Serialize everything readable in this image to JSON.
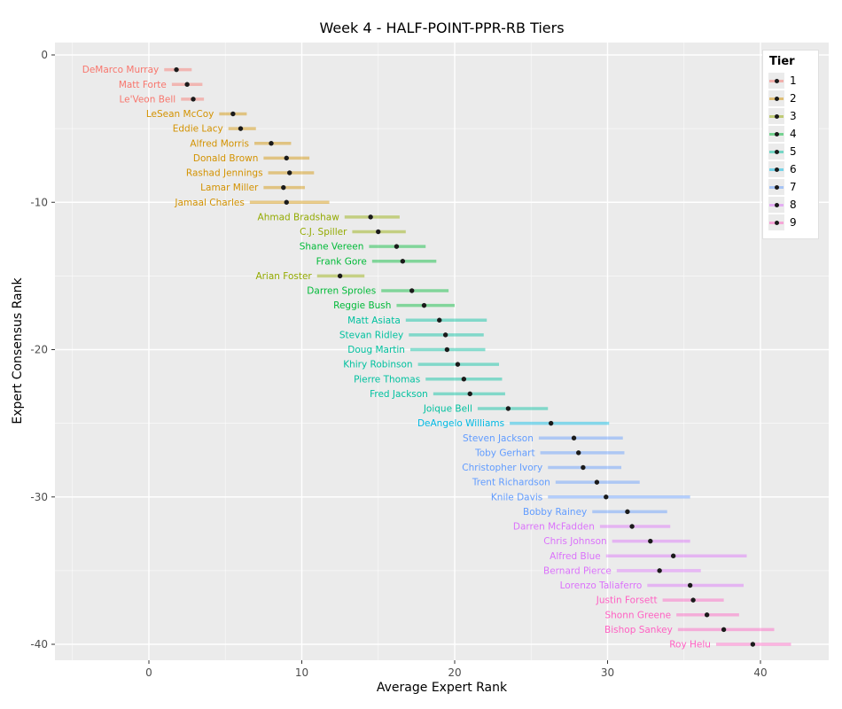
{
  "title": "Week 4 - HALF-POINT-PPR-RB Tiers",
  "legend": {
    "title": "Tier",
    "entries": [
      "1",
      "2",
      "3",
      "4",
      "5",
      "6",
      "7",
      "8",
      "9"
    ]
  },
  "colors": {
    "panel_bg": "#ebebeb",
    "grid_major": "#ffffff",
    "grid_minor": "#ffffff",
    "point": "#1b1b1b",
    "tick_label": "#4d4d4d",
    "tick_mark": "#333333",
    "tiers": [
      "#F8766D",
      "#D39200",
      "#93AA00",
      "#00BA38",
      "#00C19F",
      "#00B9E3",
      "#619CFF",
      "#DB72FB",
      "#FF61C3"
    ]
  },
  "chart_data": {
    "type": "scatter",
    "title": "Week 4 - HALF-POINT-PPR-RB Tiers",
    "xlabel": "Average Expert Rank",
    "ylabel": "Expert Consensus Rank",
    "xlim": [
      -6.1,
      44.5
    ],
    "ylim": [
      -41.9,
      0.85
    ],
    "xticks": [
      0,
      10,
      20,
      30,
      40
    ],
    "xticks_minor": [
      -5,
      5,
      15,
      25,
      35
    ],
    "yticks": [
      0,
      -10,
      -20,
      -30,
      -40
    ],
    "yticks_minor": [
      -5,
      -15,
      -25,
      -35
    ],
    "grid": true,
    "legend_position": "right-inside",
    "series_note": "y value = negative Expert Consensus Rank; bar = expert low/high range; dot = average expert rank",
    "players": [
      {
        "name": "DeMarco Murray",
        "ecr": 1,
        "tier": 1,
        "avg": 1.8,
        "lo": 1.0,
        "hi": 2.8
      },
      {
        "name": "Matt Forte",
        "ecr": 2,
        "tier": 1,
        "avg": 2.5,
        "lo": 1.5,
        "hi": 3.5
      },
      {
        "name": "Le'Veon Bell",
        "ecr": 3,
        "tier": 1,
        "avg": 2.9,
        "lo": 2.1,
        "hi": 3.6
      },
      {
        "name": "LeSean McCoy",
        "ecr": 4,
        "tier": 2,
        "avg": 5.5,
        "lo": 4.6,
        "hi": 6.4
      },
      {
        "name": "Eddie Lacy",
        "ecr": 5,
        "tier": 2,
        "avg": 6.0,
        "lo": 5.2,
        "hi": 7.0
      },
      {
        "name": "Alfred Morris",
        "ecr": 6,
        "tier": 2,
        "avg": 8.0,
        "lo": 6.9,
        "hi": 9.3
      },
      {
        "name": "Donald Brown",
        "ecr": 7,
        "tier": 2,
        "avg": 9.0,
        "lo": 7.5,
        "hi": 10.5
      },
      {
        "name": "Rashad Jennings",
        "ecr": 8,
        "tier": 2,
        "avg": 9.2,
        "lo": 7.8,
        "hi": 10.8
      },
      {
        "name": "Lamar Miller",
        "ecr": 9,
        "tier": 2,
        "avg": 8.8,
        "lo": 7.5,
        "hi": 10.2
      },
      {
        "name": "Jamaal Charles",
        "ecr": 10,
        "tier": 2,
        "avg": 9.0,
        "lo": 6.6,
        "hi": 11.8
      },
      {
        "name": "Ahmad Bradshaw",
        "ecr": 11,
        "tier": 3,
        "avg": 14.5,
        "lo": 12.8,
        "hi": 16.4
      },
      {
        "name": "C.J. Spiller",
        "ecr": 12,
        "tier": 3,
        "avg": 15.0,
        "lo": 13.3,
        "hi": 16.8
      },
      {
        "name": "Shane Vereen",
        "ecr": 13,
        "tier": 4,
        "avg": 16.2,
        "lo": 14.4,
        "hi": 18.1
      },
      {
        "name": "Frank Gore",
        "ecr": 14,
        "tier": 4,
        "avg": 16.6,
        "lo": 14.6,
        "hi": 18.8
      },
      {
        "name": "Arian Foster",
        "ecr": 15,
        "tier": 3,
        "avg": 12.5,
        "lo": 11.0,
        "hi": 14.1
      },
      {
        "name": "Darren Sproles",
        "ecr": 16,
        "tier": 4,
        "avg": 17.2,
        "lo": 15.2,
        "hi": 19.6
      },
      {
        "name": "Reggie Bush",
        "ecr": 17,
        "tier": 4,
        "avg": 18.0,
        "lo": 16.2,
        "hi": 20.0
      },
      {
        "name": "Matt Asiata",
        "ecr": 18,
        "tier": 5,
        "avg": 19.0,
        "lo": 16.8,
        "hi": 22.1
      },
      {
        "name": "Stevan Ridley",
        "ecr": 19,
        "tier": 5,
        "avg": 19.4,
        "lo": 17.0,
        "hi": 21.9
      },
      {
        "name": "Doug Martin",
        "ecr": 20,
        "tier": 5,
        "avg": 19.5,
        "lo": 17.1,
        "hi": 22.0
      },
      {
        "name": "Khiry Robinson",
        "ecr": 21,
        "tier": 5,
        "avg": 20.2,
        "lo": 17.6,
        "hi": 22.9
      },
      {
        "name": "Pierre Thomas",
        "ecr": 22,
        "tier": 5,
        "avg": 20.6,
        "lo": 18.1,
        "hi": 23.1
      },
      {
        "name": "Fred Jackson",
        "ecr": 23,
        "tier": 5,
        "avg": 21.0,
        "lo": 18.6,
        "hi": 23.3
      },
      {
        "name": "Joique Bell",
        "ecr": 24,
        "tier": 5,
        "avg": 23.5,
        "lo": 21.5,
        "hi": 26.1
      },
      {
        "name": "DeAngelo Williams",
        "ecr": 25,
        "tier": 6,
        "avg": 26.3,
        "lo": 23.6,
        "hi": 30.1
      },
      {
        "name": "Steven Jackson",
        "ecr": 26,
        "tier": 7,
        "avg": 27.8,
        "lo": 25.5,
        "hi": 31.0
      },
      {
        "name": "Toby Gerhart",
        "ecr": 27,
        "tier": 7,
        "avg": 28.1,
        "lo": 25.6,
        "hi": 31.1
      },
      {
        "name": "Christopher Ivory",
        "ecr": 28,
        "tier": 7,
        "avg": 28.4,
        "lo": 26.1,
        "hi": 30.9
      },
      {
        "name": "Trent Richardson",
        "ecr": 29,
        "tier": 7,
        "avg": 29.3,
        "lo": 26.6,
        "hi": 32.1
      },
      {
        "name": "Knile Davis",
        "ecr": 30,
        "tier": 7,
        "avg": 29.9,
        "lo": 26.1,
        "hi": 35.4
      },
      {
        "name": "Bobby Rainey",
        "ecr": 31,
        "tier": 7,
        "avg": 31.3,
        "lo": 29.0,
        "hi": 33.9
      },
      {
        "name": "Darren McFadden",
        "ecr": 32,
        "tier": 8,
        "avg": 31.6,
        "lo": 29.5,
        "hi": 34.1
      },
      {
        "name": "Chris Johnson",
        "ecr": 33,
        "tier": 8,
        "avg": 32.8,
        "lo": 30.3,
        "hi": 35.4
      },
      {
        "name": "Alfred Blue",
        "ecr": 34,
        "tier": 8,
        "avg": 34.3,
        "lo": 29.9,
        "hi": 39.1
      },
      {
        "name": "Bernard Pierce",
        "ecr": 35,
        "tier": 8,
        "avg": 33.4,
        "lo": 30.6,
        "hi": 36.1
      },
      {
        "name": "Lorenzo Taliaferro",
        "ecr": 36,
        "tier": 8,
        "avg": 35.4,
        "lo": 32.6,
        "hi": 38.9
      },
      {
        "name": "Justin Forsett",
        "ecr": 37,
        "tier": 9,
        "avg": 35.6,
        "lo": 33.6,
        "hi": 37.6
      },
      {
        "name": "Shonn Greene",
        "ecr": 38,
        "tier": 9,
        "avg": 36.5,
        "lo": 34.5,
        "hi": 38.6
      },
      {
        "name": "Bishop Sankey",
        "ecr": 39,
        "tier": 9,
        "avg": 37.6,
        "lo": 34.6,
        "hi": 40.9
      },
      {
        "name": "Roy Helu",
        "ecr": 40,
        "tier": 9,
        "avg": 39.5,
        "lo": 37.1,
        "hi": 42.0
      }
    ]
  }
}
